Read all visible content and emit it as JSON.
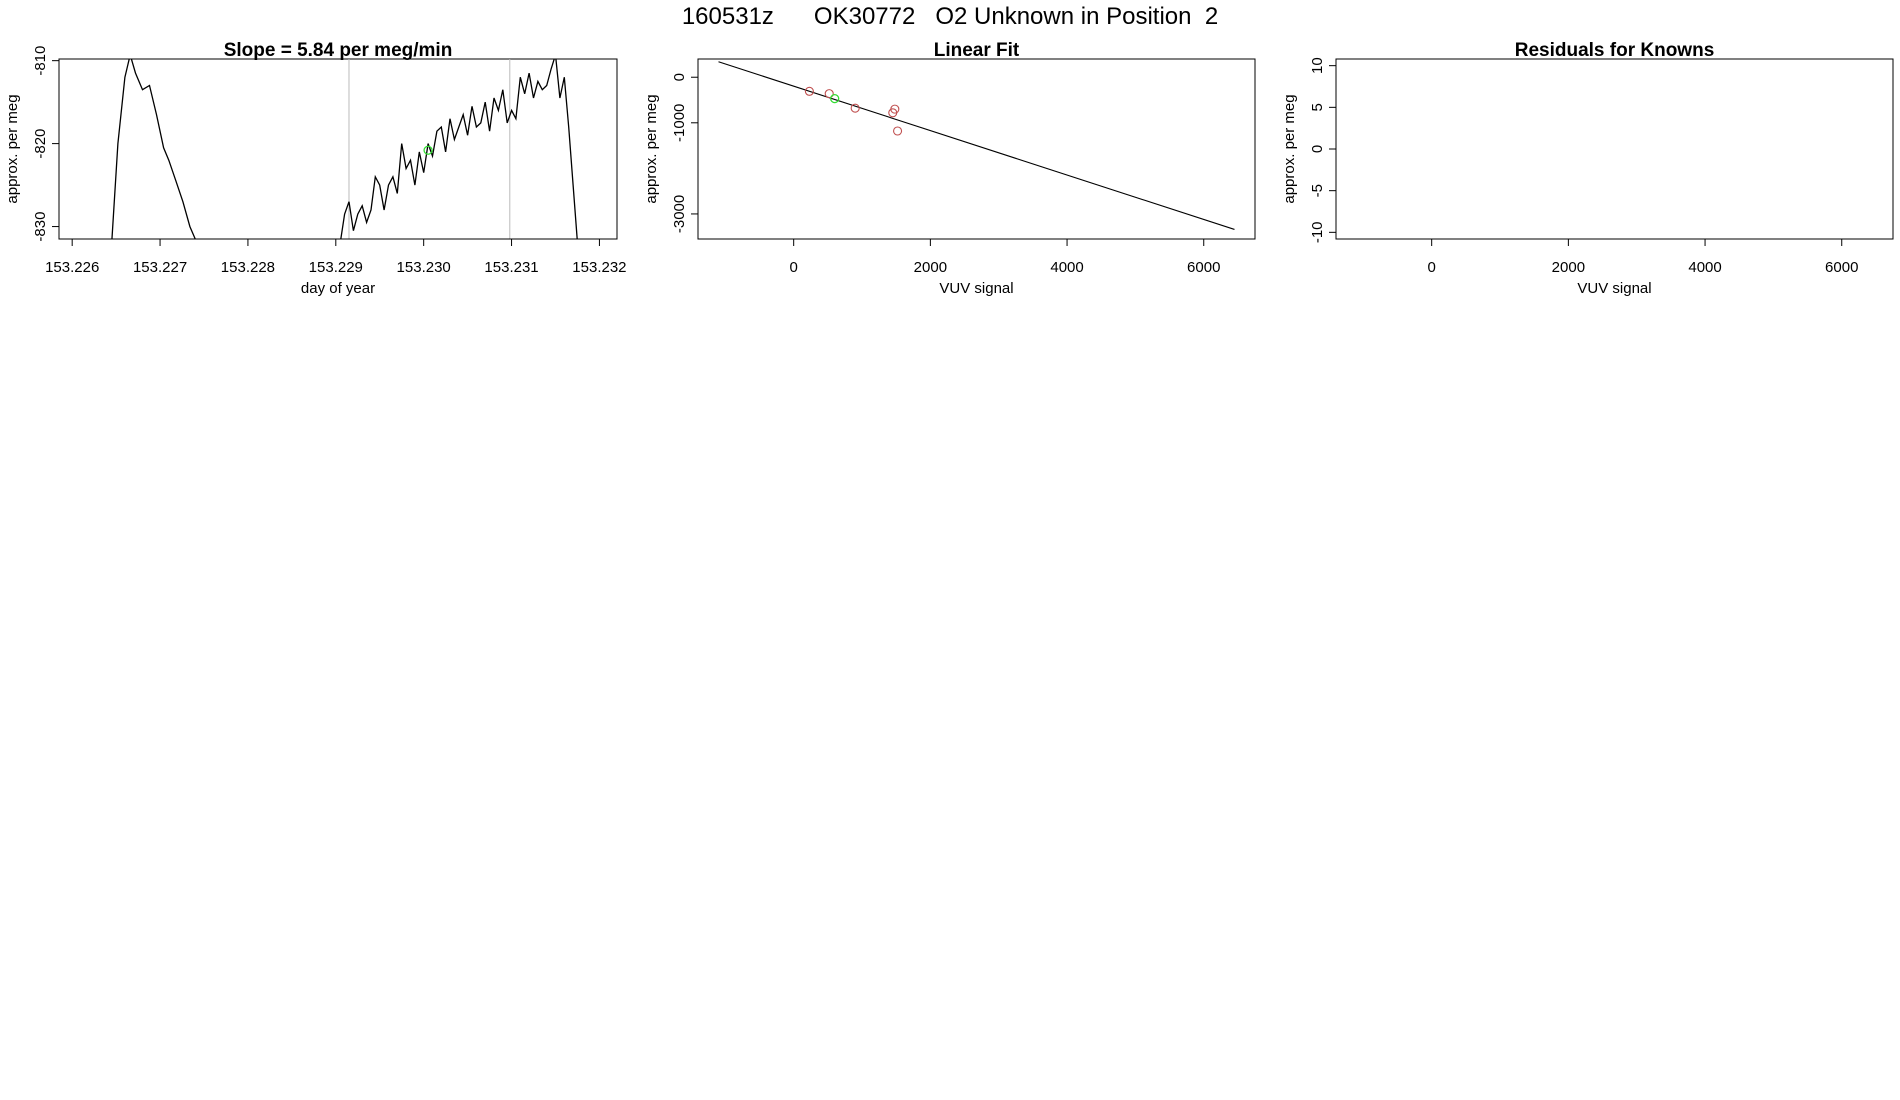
{
  "figure_title": "160531z      OK30772   O2 Unknown in Position  2",
  "colors": {
    "trace": "#000000",
    "axis": "#000000",
    "vline": "#bbbbbb",
    "known": "#c05050",
    "highlight": "#33dd33"
  },
  "chart_data": [
    {
      "type": "line",
      "title": "Slope =  5.84  per meg/min",
      "xlabel": "day of year",
      "ylabel": "approx. per meg",
      "xlim": [
        153.22585,
        153.2322
      ],
      "ylim": [
        -831.5,
        -809.8
      ],
      "xticks": [
        153.226,
        153.227,
        153.228,
        153.229,
        153.23,
        153.231,
        153.232
      ],
      "xtick_labels": [
        "153.226",
        "153.227",
        "153.228",
        "153.229",
        "153.230",
        "153.231",
        "153.232"
      ],
      "yticks": [
        -830,
        -820,
        -810
      ],
      "ytick_labels": [
        "-830",
        "-820",
        "-810"
      ],
      "vlines": [
        153.22915,
        153.23098
      ],
      "series": [
        {
          "x": [
            153.22645,
            153.22652,
            153.2266,
            153.22666,
            153.22672,
            153.2268,
            153.22688,
            153.22696,
            153.22704,
            153.2271,
            153.22718,
            153.22726,
            153.22734,
            153.22742
          ],
          "y": [
            -832,
            -820,
            -812,
            -809.3,
            -811.5,
            -813.5,
            -813,
            -816.5,
            -820.5,
            -822,
            -824.5,
            -827,
            -830,
            -832
          ]
        },
        {
          "x": [
            153.22905,
            153.2291,
            153.22915,
            153.2292,
            153.22925,
            153.2293,
            153.22935,
            153.2294,
            153.22945,
            153.2295,
            153.22955,
            153.2296,
            153.22965,
            153.2297,
            153.22975,
            153.2298,
            153.22985,
            153.2299,
            153.22995,
            153.23,
            153.23005,
            153.2301,
            153.23015,
            153.2302,
            153.23025,
            153.2303,
            153.23035,
            153.2304,
            153.23045,
            153.2305,
            153.23055,
            153.2306,
            153.23065,
            153.2307,
            153.23075,
            153.2308,
            153.23085,
            153.2309,
            153.23095,
            153.231,
            153.23105,
            153.2311,
            153.23115,
            153.2312,
            153.23125,
            153.2313,
            153.23135,
            153.2314,
            153.23145,
            153.2315,
            153.23155,
            153.2316,
            153.23165,
            153.2317,
            153.23175
          ],
          "y": [
            -832,
            -828.5,
            -827,
            -830.5,
            -828.5,
            -827.5,
            -829.5,
            -828,
            -824,
            -825,
            -828,
            -825,
            -824,
            -826,
            -820,
            -823,
            -822,
            -825,
            -821,
            -823.5,
            -820,
            -821.5,
            -818.5,
            -818,
            -821,
            -817,
            -819.5,
            -818,
            -816.5,
            -819,
            -815.5,
            -818,
            -817.5,
            -815,
            -818.5,
            -814.5,
            -816,
            -813.5,
            -817.5,
            -816,
            -817,
            -812,
            -814,
            -811.5,
            -814.5,
            -812.5,
            -813.5,
            -813,
            -811,
            -809.3,
            -814.5,
            -812,
            -818,
            -825,
            -832
          ]
        }
      ],
      "highlight_points": [
        {
          "x": 153.23005,
          "y": -820.8
        }
      ]
    },
    {
      "type": "scatter",
      "title": "Linear Fit",
      "xlabel": "VUV signal",
      "ylabel": "approx. per meg",
      "xlim": [
        -1400,
        6750
      ],
      "ylim": [
        -3550,
        400
      ],
      "xticks": [
        0,
        2000,
        4000,
        6000
      ],
      "xtick_labels": [
        "0",
        "2000",
        "4000",
        "6000"
      ],
      "yticks": [
        -3000,
        -1000,
        0
      ],
      "ytick_labels": [
        "-3000",
        "-1000",
        "0"
      ],
      "fit_line": {
        "x": [
          -1100,
          6450
        ],
        "y": [
          340,
          -3340
        ]
      },
      "knowns": {
        "x": [
          230,
          520,
          900,
          1450,
          1480,
          1520
        ],
        "y": [
          -310,
          -360,
          -680,
          -780,
          -700,
          -1180
        ]
      },
      "highlight_points": [
        {
          "x": 600,
          "y": -470
        }
      ]
    },
    {
      "type": "scatter",
      "title": "Residuals for Knowns",
      "xlabel": "VUV signal",
      "ylabel": "approx. per meg",
      "xlim": [
        -1400,
        6750
      ],
      "ylim": [
        -10.8,
        10.8
      ],
      "xticks": [
        0,
        2000,
        4000,
        6000
      ],
      "xtick_labels": [
        "0",
        "2000",
        "4000",
        "6000"
      ],
      "yticks": [
        -10,
        -5,
        0,
        5,
        10
      ],
      "ytick_labels": [
        "-10",
        "-5",
        "0",
        "5",
        "10"
      ],
      "knowns": {
        "x": [],
        "y": []
      }
    }
  ]
}
